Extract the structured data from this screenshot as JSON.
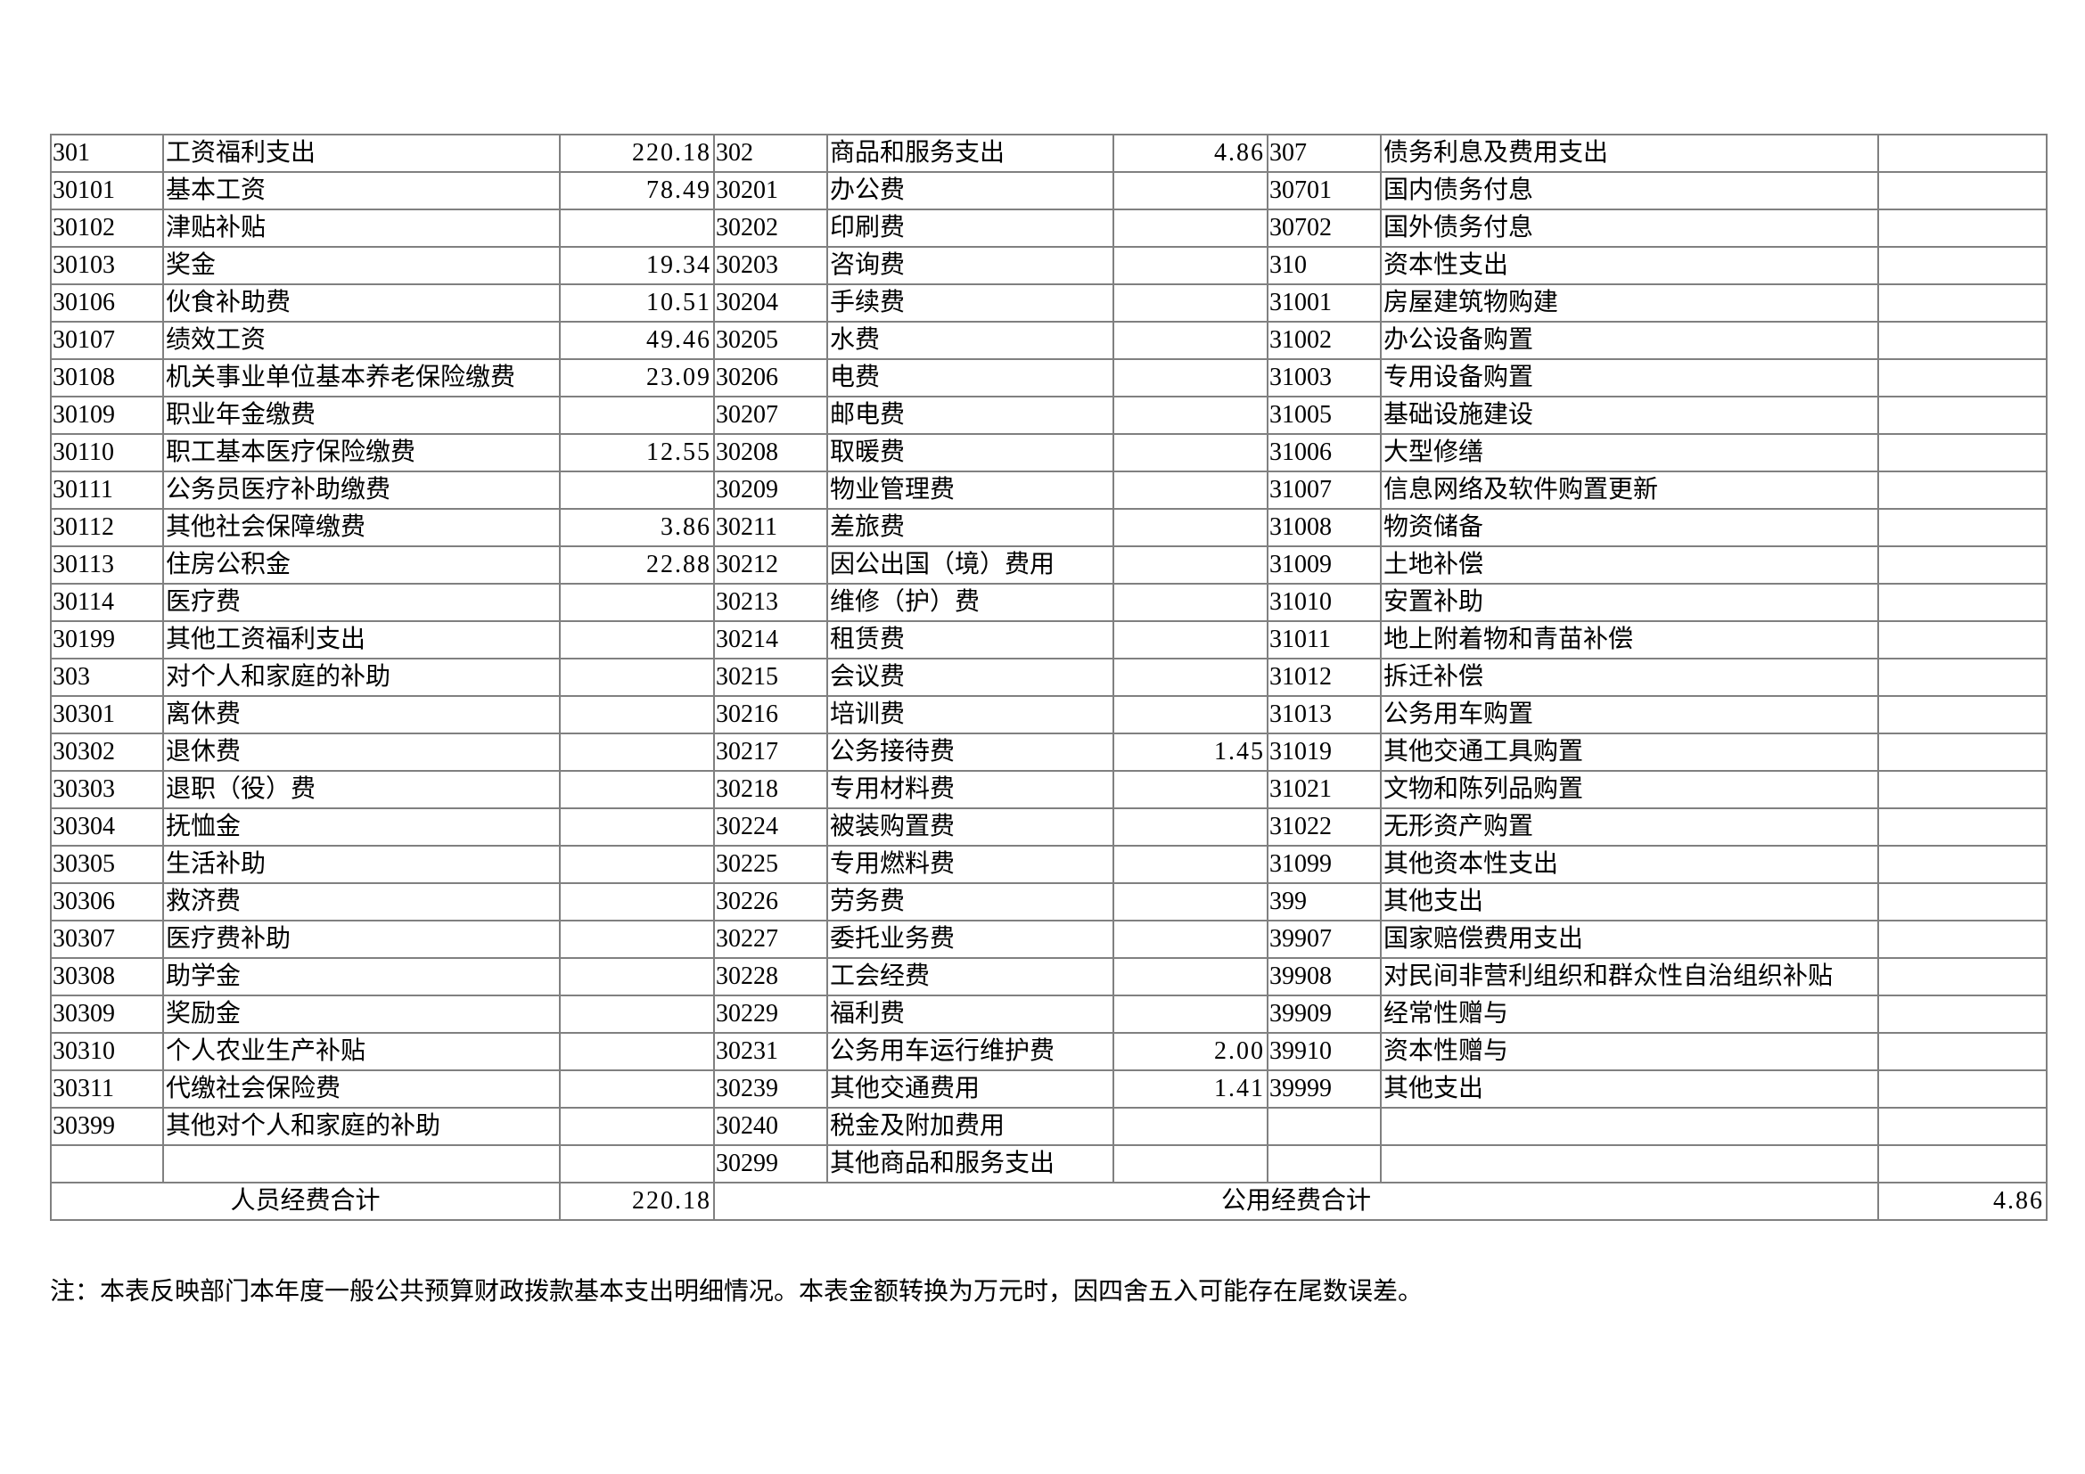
{
  "rows": [
    {
      "c1": "301",
      "n1": "工资福利支出",
      "v1": "220.18",
      "c2": "302",
      "n2": "商品和服务支出",
      "v2": "4.86",
      "c3": "307",
      "n3": "债务利息及费用支出",
      "v3": ""
    },
    {
      "c1": "30101",
      "n1": "基本工资",
      "v1": "78.49",
      "c2": "30201",
      "n2": "办公费",
      "v2": "",
      "c3": "30701",
      "n3": "国内债务付息",
      "v3": ""
    },
    {
      "c1": "30102",
      "n1": "津贴补贴",
      "v1": "",
      "c2": "30202",
      "n2": "印刷费",
      "v2": "",
      "c3": "30702",
      "n3": "国外债务付息",
      "v3": ""
    },
    {
      "c1": "30103",
      "n1": "奖金",
      "v1": "19.34",
      "c2": "30203",
      "n2": "咨询费",
      "v2": "",
      "c3": "310",
      "n3": "资本性支出",
      "v3": ""
    },
    {
      "c1": "30106",
      "n1": "伙食补助费",
      "v1": "10.51",
      "c2": "30204",
      "n2": "手续费",
      "v2": "",
      "c3": "31001",
      "n3": "房屋建筑物购建",
      "v3": ""
    },
    {
      "c1": "30107",
      "n1": "绩效工资",
      "v1": "49.46",
      "c2": "30205",
      "n2": "水费",
      "v2": "",
      "c3": "31002",
      "n3": "办公设备购置",
      "v3": ""
    },
    {
      "c1": "30108",
      "n1": "机关事业单位基本养老保险缴费",
      "v1": "23.09",
      "c2": "30206",
      "n2": "电费",
      "v2": "",
      "c3": "31003",
      "n3": "专用设备购置",
      "v3": ""
    },
    {
      "c1": "30109",
      "n1": "职业年金缴费",
      "v1": "",
      "c2": "30207",
      "n2": "邮电费",
      "v2": "",
      "c3": "31005",
      "n3": "基础设施建设",
      "v3": ""
    },
    {
      "c1": "30110",
      "n1": "职工基本医疗保险缴费",
      "v1": "12.55",
      "c2": "30208",
      "n2": "取暖费",
      "v2": "",
      "c3": "31006",
      "n3": "大型修缮",
      "v3": ""
    },
    {
      "c1": "30111",
      "n1": "公务员医疗补助缴费",
      "v1": "",
      "c2": "30209",
      "n2": "物业管理费",
      "v2": "",
      "c3": "31007",
      "n3": "信息网络及软件购置更新",
      "v3": ""
    },
    {
      "c1": "30112",
      "n1": "其他社会保障缴费",
      "v1": "3.86",
      "c2": "30211",
      "n2": "差旅费",
      "v2": "",
      "c3": "31008",
      "n3": "物资储备",
      "v3": ""
    },
    {
      "c1": "30113",
      "n1": "住房公积金",
      "v1": "22.88",
      "c2": "30212",
      "n2": "因公出国（境）费用",
      "v2": "",
      "c3": "31009",
      "n3": "土地补偿",
      "v3": ""
    },
    {
      "c1": "30114",
      "n1": "医疗费",
      "v1": "",
      "c2": "30213",
      "n2": "维修（护）费",
      "v2": "",
      "c3": "31010",
      "n3": "安置补助",
      "v3": ""
    },
    {
      "c1": "30199",
      "n1": "其他工资福利支出",
      "v1": "",
      "c2": "30214",
      "n2": "租赁费",
      "v2": "",
      "c3": "31011",
      "n3": "地上附着物和青苗补偿",
      "v3": ""
    },
    {
      "c1": "303",
      "n1": "对个人和家庭的补助",
      "v1": "",
      "c2": "30215",
      "n2": "会议费",
      "v2": "",
      "c3": "31012",
      "n3": "拆迁补偿",
      "v3": ""
    },
    {
      "c1": "30301",
      "n1": "离休费",
      "v1": "",
      "c2": "30216",
      "n2": "培训费",
      "v2": "",
      "c3": "31013",
      "n3": "公务用车购置",
      "v3": ""
    },
    {
      "c1": "30302",
      "n1": "退休费",
      "v1": "",
      "c2": "30217",
      "n2": "公务接待费",
      "v2": "1.45",
      "c3": "31019",
      "n3": "其他交通工具购置",
      "v3": ""
    },
    {
      "c1": "30303",
      "n1": "退职（役）费",
      "v1": "",
      "c2": "30218",
      "n2": "专用材料费",
      "v2": "",
      "c3": "31021",
      "n3": "文物和陈列品购置",
      "v3": ""
    },
    {
      "c1": "30304",
      "n1": "抚恤金",
      "v1": "",
      "c2": "30224",
      "n2": "被装购置费",
      "v2": "",
      "c3": "31022",
      "n3": "无形资产购置",
      "v3": ""
    },
    {
      "c1": "30305",
      "n1": "生活补助",
      "v1": "",
      "c2": "30225",
      "n2": "专用燃料费",
      "v2": "",
      "c3": "31099",
      "n3": "其他资本性支出",
      "v3": ""
    },
    {
      "c1": "30306",
      "n1": "救济费",
      "v1": "",
      "c2": "30226",
      "n2": "劳务费",
      "v2": "",
      "c3": "399",
      "n3": "其他支出",
      "v3": ""
    },
    {
      "c1": "30307",
      "n1": "医疗费补助",
      "v1": "",
      "c2": "30227",
      "n2": "委托业务费",
      "v2": "",
      "c3": "39907",
      "n3": "国家赔偿费用支出",
      "v3": ""
    },
    {
      "c1": "30308",
      "n1": "助学金",
      "v1": "",
      "c2": "30228",
      "n2": "工会经费",
      "v2": "",
      "c3": "39908",
      "n3": "对民间非营利组织和群众性自治组织补贴",
      "v3": ""
    },
    {
      "c1": "30309",
      "n1": "奖励金",
      "v1": "",
      "c2": "30229",
      "n2": "福利费",
      "v2": "",
      "c3": "39909",
      "n3": "经常性赠与",
      "v3": ""
    },
    {
      "c1": "30310",
      "n1": "个人农业生产补贴",
      "v1": "",
      "c2": "30231",
      "n2": "公务用车运行维护费",
      "v2": "2.00",
      "c3": "39910",
      "n3": "资本性赠与",
      "v3": ""
    },
    {
      "c1": "30311",
      "n1": "代缴社会保险费",
      "v1": "",
      "c2": "30239",
      "n2": "其他交通费用",
      "v2": "1.41",
      "c3": "39999",
      "n3": "其他支出",
      "v3": ""
    },
    {
      "c1": "30399",
      "n1": "其他对个人和家庭的补助",
      "v1": "",
      "c2": "30240",
      "n2": "税金及附加费用",
      "v2": "",
      "c3": "",
      "n3": "",
      "v3": ""
    },
    {
      "c1": "",
      "n1": "",
      "v1": "",
      "c2": "30299",
      "n2": "其他商品和服务支出",
      "v2": "",
      "c3": "",
      "n3": "",
      "v3": ""
    }
  ],
  "totals": {
    "personnel_label": "人员经费合计",
    "personnel_value": "220.18",
    "public_label": "公用经费合计",
    "public_value": "4.86"
  },
  "note": "注：本表反映部门本年度一般公共预算财政拨款基本支出明细情况。本表金额转换为万元时，因四舍五入可能存在尾数误差。"
}
